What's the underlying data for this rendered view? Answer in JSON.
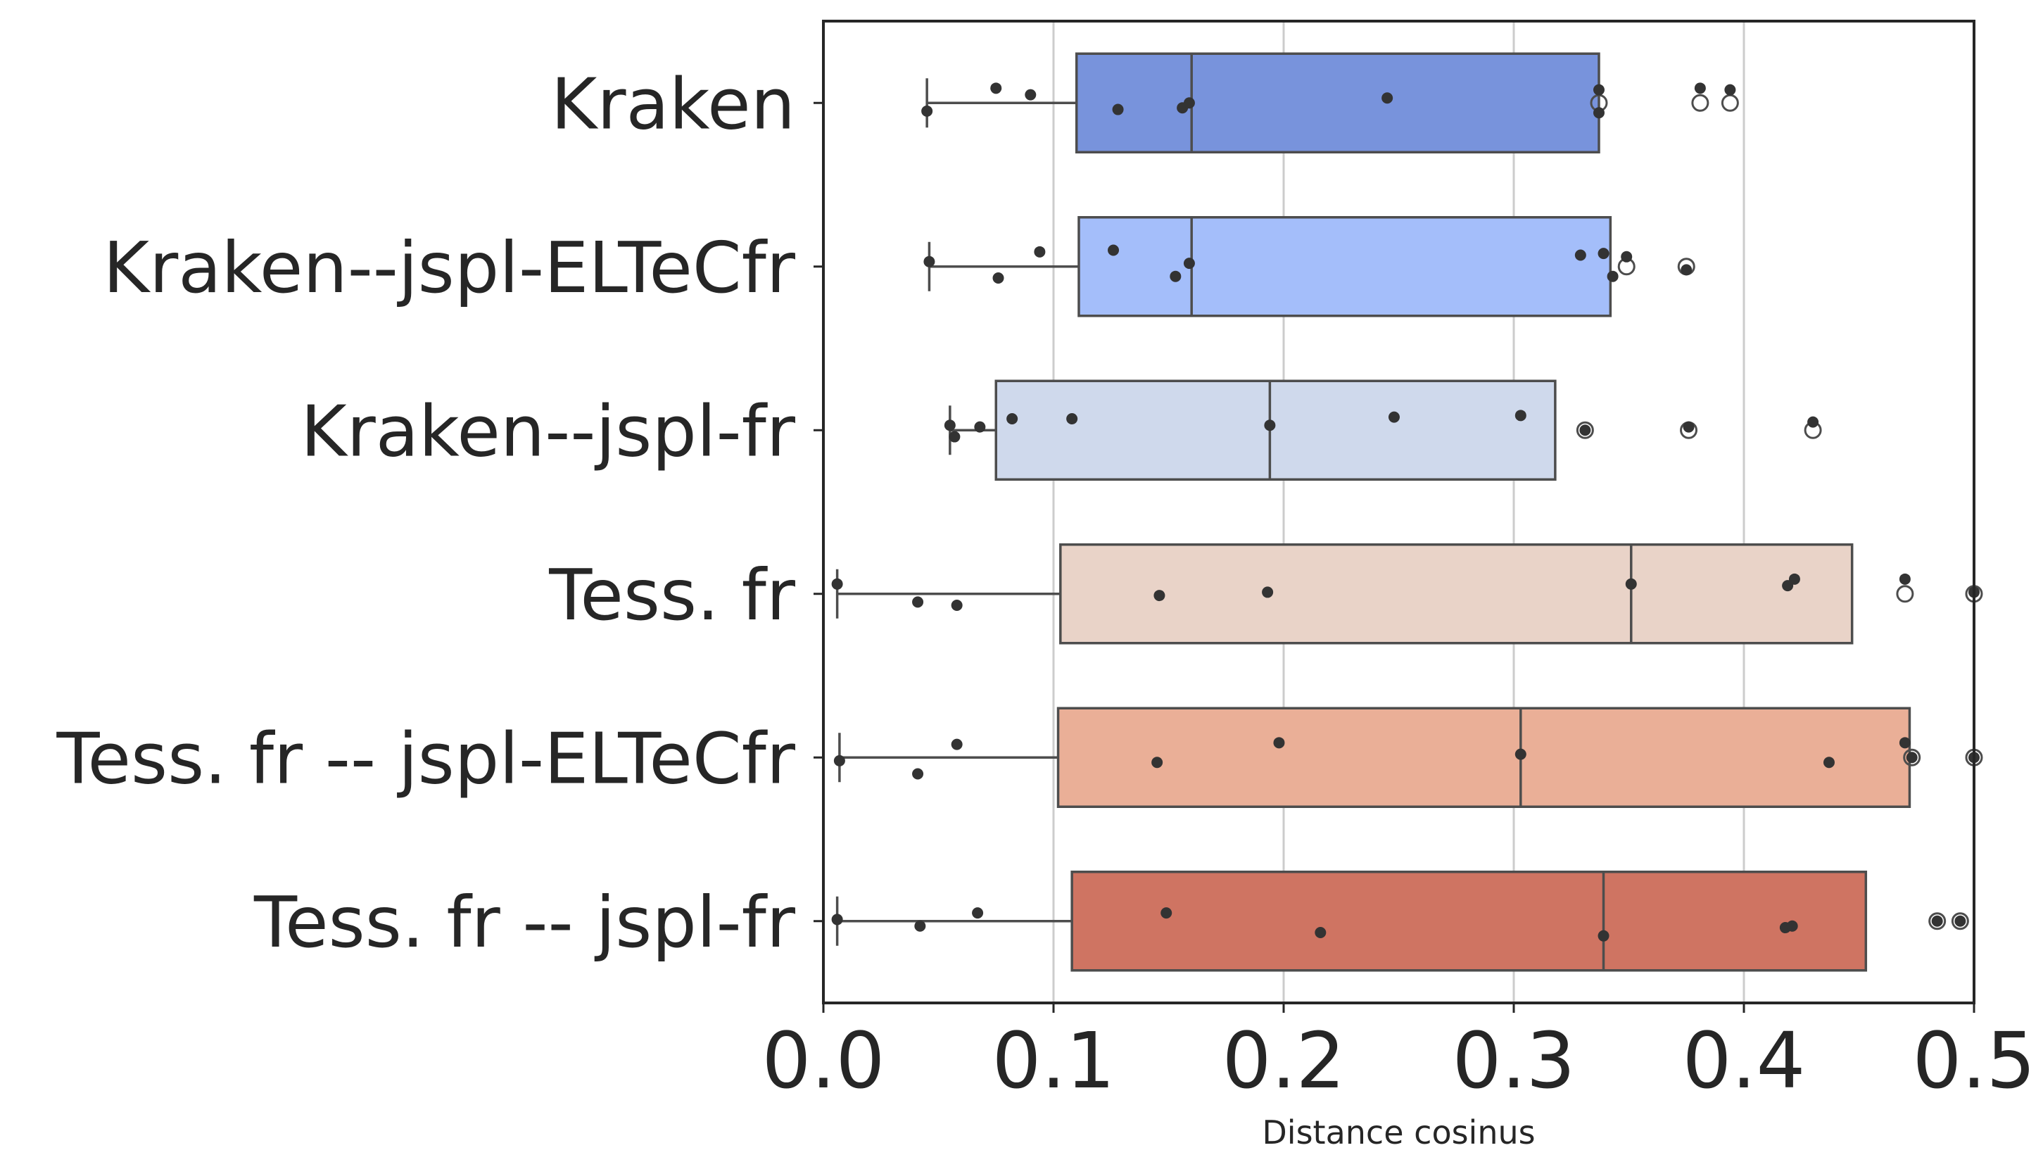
{
  "chart_data": {
    "type": "box",
    "orientation": "horizontal",
    "xlabel": "Distance cosinus",
    "ylabel": "",
    "xlim": [
      0.0,
      0.5
    ],
    "xticks": [
      0.0,
      0.1,
      0.2,
      0.3,
      0.4,
      0.5
    ],
    "xtick_labels": [
      "0.0",
      "0.1",
      "0.2",
      "0.3",
      "0.4",
      "0.5"
    ],
    "grid": "vertical",
    "categories": [
      "Kraken",
      "Kraken--jspl-ELTeCfr",
      "Kraken--jspl-fr",
      "Tess. fr",
      "Tess. fr -- jspl-ELTeCfr",
      "Tess. fr -- jspl-fr"
    ],
    "colors": [
      "#7893dc",
      "#a4befa",
      "#cfd9ec",
      "#e9d3c8",
      "#eaaf97",
      "#cf7462"
    ],
    "boxes": [
      {
        "whisker_low": 0.045,
        "q1": 0.11,
        "median": 0.16,
        "q3": 0.337,
        "whisker_high": 0.337,
        "outliers": [
          0.337,
          0.381,
          0.394
        ]
      },
      {
        "whisker_low": 0.046,
        "q1": 0.111,
        "median": 0.16,
        "q3": 0.342,
        "whisker_high": 0.342,
        "outliers": [
          0.349,
          0.375
        ]
      },
      {
        "whisker_low": 0.055,
        "q1": 0.075,
        "median": 0.194,
        "q3": 0.318,
        "whisker_high": 0.318,
        "outliers": [
          0.331,
          0.376,
          0.43
        ]
      },
      {
        "whisker_low": 0.006,
        "q1": 0.103,
        "median": 0.351,
        "q3": 0.447,
        "whisker_high": 0.447,
        "outliers": [
          0.47,
          0.5
        ]
      },
      {
        "whisker_low": 0.007,
        "q1": 0.102,
        "median": 0.303,
        "q3": 0.472,
        "whisker_high": 0.472,
        "outliers": [
          0.473,
          0.5
        ]
      },
      {
        "whisker_low": 0.006,
        "q1": 0.108,
        "median": 0.339,
        "q3": 0.453,
        "whisker_high": 0.453,
        "outliers": [
          0.484,
          0.494
        ]
      }
    ],
    "points": [
      [
        [
          0.045,
          0.05
        ],
        [
          0.075,
          -0.09
        ],
        [
          0.09,
          -0.05
        ],
        [
          0.128,
          0.04
        ],
        [
          0.156,
          0.03
        ],
        [
          0.159,
          0.0
        ],
        [
          0.245,
          -0.03
        ],
        [
          0.337,
          -0.08
        ],
        [
          0.337,
          0.06
        ],
        [
          0.381,
          -0.09
        ],
        [
          0.394,
          -0.08
        ]
      ],
      [
        [
          0.046,
          -0.03
        ],
        [
          0.076,
          0.07
        ],
        [
          0.094,
          -0.09
        ],
        [
          0.126,
          -0.1
        ],
        [
          0.153,
          0.06
        ],
        [
          0.159,
          -0.02
        ],
        [
          0.329,
          -0.07
        ],
        [
          0.339,
          -0.08
        ],
        [
          0.343,
          0.06
        ],
        [
          0.349,
          -0.06
        ],
        [
          0.375,
          0.02
        ]
      ],
      [
        [
          0.055,
          -0.03
        ],
        [
          0.057,
          0.04
        ],
        [
          0.068,
          -0.02
        ],
        [
          0.082,
          -0.07
        ],
        [
          0.108,
          -0.07
        ],
        [
          0.194,
          -0.03
        ],
        [
          0.248,
          -0.08
        ],
        [
          0.303,
          -0.09
        ],
        [
          0.331,
          0.0
        ],
        [
          0.376,
          -0.02
        ],
        [
          0.43,
          -0.05
        ]
      ],
      [
        [
          0.006,
          -0.06
        ],
        [
          0.041,
          0.05
        ],
        [
          0.058,
          0.07
        ],
        [
          0.146,
          0.01
        ],
        [
          0.193,
          -0.01
        ],
        [
          0.351,
          -0.06
        ],
        [
          0.419,
          -0.05
        ],
        [
          0.422,
          -0.09
        ],
        [
          0.47,
          -0.09
        ],
        [
          0.5,
          -0.01
        ]
      ],
      [
        [
          0.007,
          0.02
        ],
        [
          0.041,
          0.1
        ],
        [
          0.058,
          -0.08
        ],
        [
          0.145,
          0.03
        ],
        [
          0.198,
          -0.09
        ],
        [
          0.303,
          -0.02
        ],
        [
          0.437,
          0.03
        ],
        [
          0.47,
          -0.09
        ],
        [
          0.473,
          0.0
        ],
        [
          0.5,
          0.0
        ]
      ],
      [
        [
          0.006,
          -0.01
        ],
        [
          0.042,
          0.03
        ],
        [
          0.067,
          -0.05
        ],
        [
          0.149,
          -0.05
        ],
        [
          0.216,
          0.07
        ],
        [
          0.339,
          0.09
        ],
        [
          0.418,
          0.04
        ],
        [
          0.421,
          0.03
        ],
        [
          0.484,
          0.0
        ],
        [
          0.494,
          0.0
        ]
      ]
    ]
  }
}
